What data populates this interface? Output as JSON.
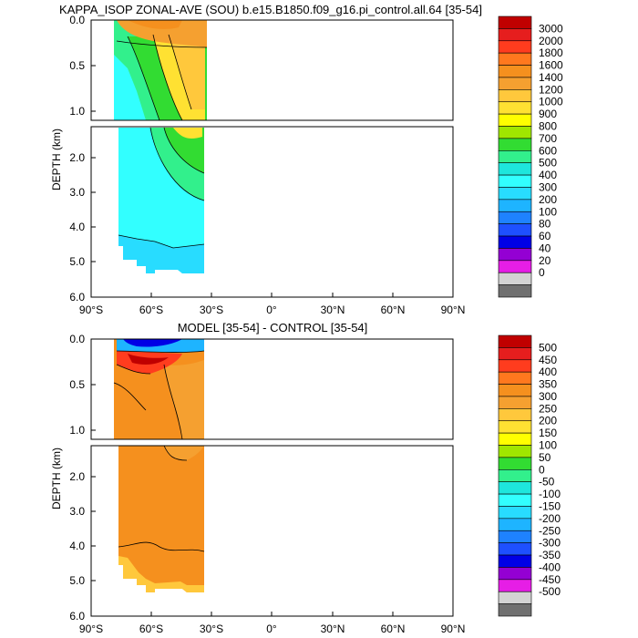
{
  "chart_data": [
    {
      "type": "contour",
      "title": "KAPPA_ISOP ZONAL-AVE (SOU) b.e15.B1850.f09_g16.pi_control.all.64 [35-54]",
      "xlabel": "",
      "ylabel": "DEPTH (km)",
      "x_ticks": [
        "90°S",
        "60°S",
        "30°S",
        "0°",
        "30°N",
        "60°N",
        "90°N"
      ],
      "x_values": [
        -90,
        -60,
        -30,
        0,
        30,
        60,
        90
      ],
      "y_ticks_upper": [
        "0.0",
        "0.5",
        "1.0"
      ],
      "y_values_upper": [
        0.0,
        0.5,
        1.0
      ],
      "y_ticks_lower": [
        "2.0",
        "3.0",
        "4.0",
        "5.0",
        "6.0"
      ],
      "y_values_lower": [
        2.0,
        3.0,
        4.0,
        5.0,
        6.0
      ],
      "upper_ylim": [
        0.0,
        1.1
      ],
      "lower_ylim": [
        1.1,
        6.0
      ],
      "xlim": [
        -90,
        90
      ],
      "data_extent": {
        "lat_min": -78,
        "lat_max": -34,
        "depth_max": 5.5
      },
      "colorbar": {
        "labels": [
          "3000",
          "2000",
          "1800",
          "1600",
          "1400",
          "1200",
          "1000",
          "900",
          "800",
          "700",
          "600",
          "500",
          "400",
          "300",
          "200",
          "100",
          "80",
          "60",
          "40",
          "20",
          "0"
        ],
        "colors": [
          "#c00000",
          "#e61e1e",
          "#ff3c1e",
          "#ff781e",
          "#f5901e",
          "#f5a030",
          "#ffc83c",
          "#ffe132",
          "#ffff00",
          "#a0e600",
          "#32dc32",
          "#32f08c",
          "#1ee6dc",
          "#32ffff",
          "#28dcff",
          "#1eb4ff",
          "#1e82ff",
          "#1e50ff",
          "#0000e6",
          "#9400d3",
          "#e61ee6",
          "#d3d3d3",
          "#707070"
        ]
      },
      "regions": [
        {
          "name": "deep",
          "value": 500,
          "color": "#32ffff"
        },
        {
          "name": "abyss-band",
          "value": 400,
          "color": "#28dcff"
        },
        {
          "name": "mid",
          "value": 600,
          "color": "#32f08c"
        },
        {
          "name": "thermocline-core",
          "value": 700,
          "color": "#32dc32"
        },
        {
          "name": "subtropical-lens",
          "value": 1000,
          "color": "#ffe132"
        },
        {
          "name": "surface-max",
          "value": 1400,
          "color": "#f5a030"
        }
      ]
    },
    {
      "type": "contour",
      "title": "MODEL [35-54] - CONTROL [35-54]",
      "xlabel": "",
      "ylabel": "DEPTH (km)",
      "x_ticks": [
        "90°S",
        "60°S",
        "30°S",
        "0°",
        "30°N",
        "60°N",
        "90°N"
      ],
      "x_values": [
        -90,
        -60,
        -30,
        0,
        30,
        60,
        90
      ],
      "y_ticks_upper": [
        "0.0",
        "0.5",
        "1.0"
      ],
      "y_values_upper": [
        0.0,
        0.5,
        1.0
      ],
      "y_ticks_lower": [
        "2.0",
        "3.0",
        "4.0",
        "5.0",
        "6.0"
      ],
      "y_values_lower": [
        2.0,
        3.0,
        4.0,
        5.0,
        6.0
      ],
      "upper_ylim": [
        0.0,
        1.1
      ],
      "lower_ylim": [
        1.1,
        6.0
      ],
      "xlim": [
        -90,
        90
      ],
      "data_extent": {
        "lat_min": -78,
        "lat_max": -34,
        "depth_max": 5.5
      },
      "colorbar": {
        "labels": [
          "500",
          "450",
          "400",
          "350",
          "300",
          "250",
          "200",
          "150",
          "100",
          "50",
          "0",
          "-50",
          "-100",
          "-150",
          "-200",
          "-250",
          "-300",
          "-350",
          "-400",
          "-450",
          "-500"
        ],
        "colors": [
          "#c00000",
          "#e61e1e",
          "#ff3c1e",
          "#ff781e",
          "#f5901e",
          "#f5a030",
          "#ffc83c",
          "#ffe132",
          "#ffff00",
          "#a0e600",
          "#32dc32",
          "#32f08c",
          "#1ee6dc",
          "#32ffff",
          "#28dcff",
          "#1eb4ff",
          "#1e82ff",
          "#1e50ff",
          "#0000e6",
          "#9400d3",
          "#e61ee6",
          "#d3d3d3",
          "#707070"
        ]
      },
      "regions": [
        {
          "name": "interior",
          "value": 275,
          "color": "#f5901e"
        },
        {
          "name": "upper-light",
          "value": 225,
          "color": "#f5a030"
        },
        {
          "name": "bottom-edge",
          "value": 175,
          "color": "#ffc83c"
        },
        {
          "name": "surface-positive",
          "value": 375,
          "color": "#ff3c1e"
        },
        {
          "name": "surface-max",
          "value": 450,
          "color": "#c00000"
        },
        {
          "name": "surface-negative",
          "value": -200,
          "color": "#1eb4ff"
        },
        {
          "name": "surface-min",
          "value": -400,
          "color": "#0000e6"
        }
      ]
    }
  ]
}
